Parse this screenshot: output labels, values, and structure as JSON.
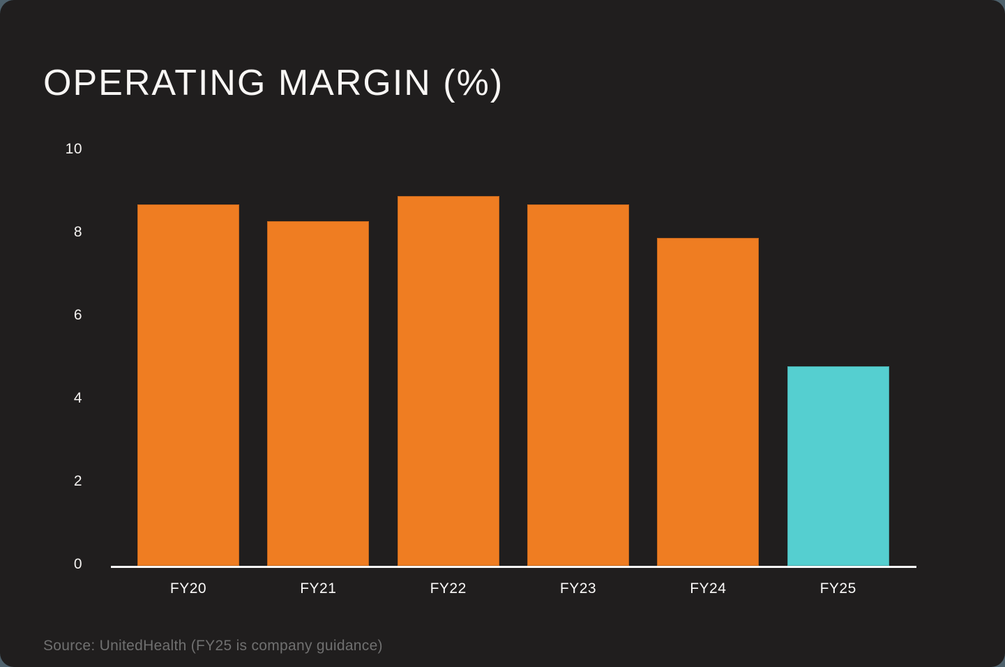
{
  "chart_data": {
    "type": "bar",
    "title": "OPERATING MARGIN (%)",
    "categories": [
      "FY20",
      "FY21",
      "FY22",
      "FY23",
      "FY24",
      "FY25"
    ],
    "values": [
      8.7,
      8.3,
      8.9,
      8.7,
      7.9,
      4.8
    ],
    "xlabel": "",
    "ylabel": "",
    "ylim": [
      0,
      10
    ],
    "yticks": [
      0,
      2,
      4,
      6,
      8,
      10
    ],
    "grid": false,
    "legend": "none",
    "bar_colors": [
      "#EF7D22",
      "#EF7D22",
      "#EF7D22",
      "#EF7D22",
      "#EF7D22",
      "#55CFD0"
    ],
    "highlight_category": "FY25",
    "annotation": "FY25 is shown in teal as company guidance"
  },
  "footer": {
    "source": "Source: UnitedHealth (FY25 is company guidance)"
  },
  "colors": {
    "card_background": "#201E1E",
    "page_background": "#4E616C",
    "bar_default": "#EF7D22",
    "bar_highlight": "#55CFD0",
    "axis_line": "#FDFDFD",
    "title_text": "#F8F6F4",
    "tick_text": "#F5F3F1",
    "source_text": "#707070"
  }
}
